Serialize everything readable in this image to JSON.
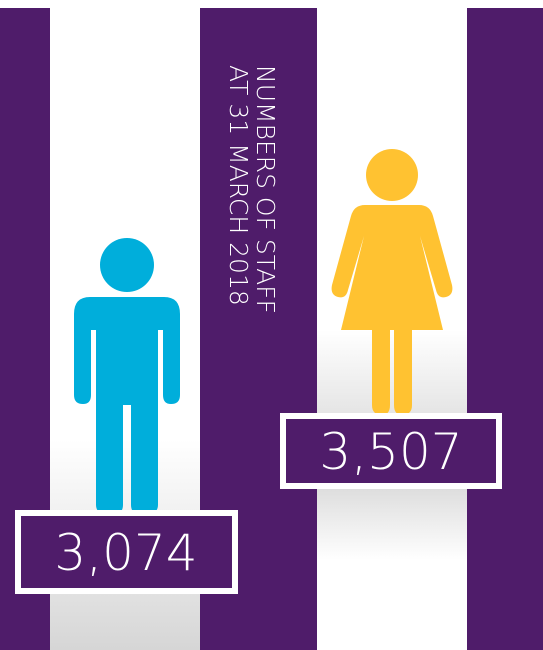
{
  "title": {
    "lines": [
      "NUMBERS OF STAFF",
      "AT 31 MARCH 2018"
    ]
  },
  "figures": [
    {
      "value": "3,074"
    },
    {
      "value": "3,507"
    }
  ]
}
